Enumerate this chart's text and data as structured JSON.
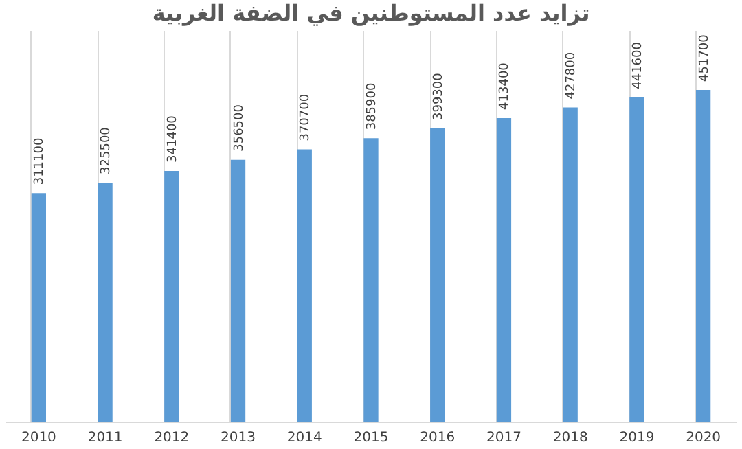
{
  "chart_data": {
    "type": "bar",
    "title": "تزايد عدد المستوطنين في الضفة الغربية",
    "categories": [
      "2010",
      "2011",
      "2012",
      "2013",
      "2014",
      "2015",
      "2016",
      "2017",
      "2018",
      "2019",
      "2020"
    ],
    "values": [
      311100,
      325500,
      341400,
      356500,
      370700,
      385900,
      399300,
      413400,
      427800,
      441600,
      451700
    ],
    "color": "#5b9bd5",
    "tick_labels": "x",
    "data_labels": true,
    "grid": "x"
  }
}
